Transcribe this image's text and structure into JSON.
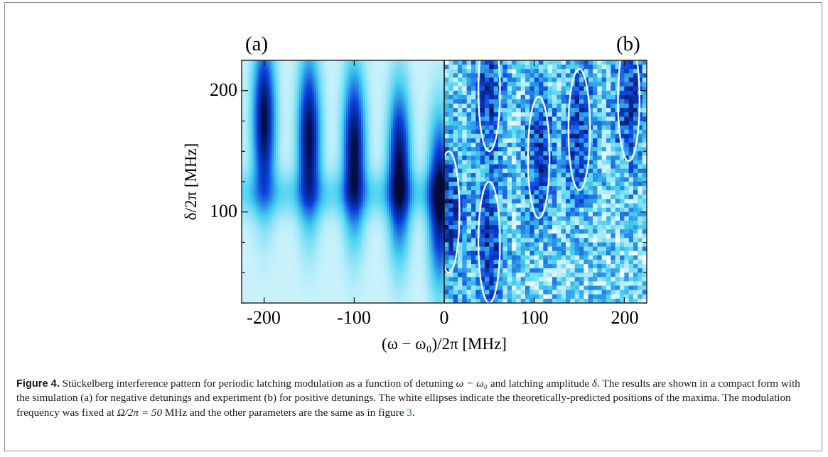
{
  "figure": {
    "panel_a_label": "(a)",
    "panel_b_label": "(b)",
    "xlabel": "(ω − ω₀)/2π  [MHz]",
    "ylabel": "δ/2π  [MHz]",
    "x_ticks": [
      "-200",
      "-100",
      "0",
      "100",
      "200"
    ],
    "y_ticks": [
      "200",
      "100"
    ]
  },
  "caption": {
    "label": "Figure 4.",
    "text_1": " Stückelberg interference pattern for periodic latching modulation as a function of detuning ",
    "detuning_expr": "ω − ω₀",
    "text_2": " and latching amplitude ",
    "amp_symbol": "δ",
    "text_3": ". The results are shown in a compact form with the simulation (a) for negative detunings and experiment (b) for positive detunings. The white ellipses indicate the theoretically-predicted positions of the maxima. The modulation frequency was fixed at ",
    "freq_expr": "Ω/2π = 50",
    "text_4": " MHz and the other parameters are the same as in figure ",
    "fig_ref": "3",
    "text_5": "."
  },
  "chart_data": {
    "type": "heatmap",
    "xlabel": "(ω − ω₀)/2π [MHz]",
    "ylabel": "δ/2π [MHz]",
    "xlim": [
      -225,
      225
    ],
    "ylim": [
      25,
      225
    ],
    "x_ticks": [
      -200,
      -100,
      0,
      100,
      200
    ],
    "y_ticks": [
      100,
      200
    ],
    "colormap": [
      "#f5fdff",
      "#45d0f0",
      "#0a3fdc",
      "#020a3c"
    ],
    "modulation_frequency_MHz": 50,
    "panel_a": {
      "label": "(a)",
      "x_range": [
        -225,
        0
      ],
      "dark_fringe_centers_x": [
        -200,
        -150,
        -100,
        -50,
        -5
      ],
      "dark_fringe_centers_y": [
        175,
        160,
        150,
        135,
        110
      ]
    },
    "panel_b": {
      "label": "(b)",
      "x_range": [
        0,
        225
      ],
      "ellipse_centers": [
        {
          "x": 5,
          "y": 100
        },
        {
          "x": 50,
          "y": 75
        },
        {
          "x": 50,
          "y": 200
        },
        {
          "x": 105,
          "y": 145
        },
        {
          "x": 150,
          "y": 168
        },
        {
          "x": 205,
          "y": 192
        }
      ]
    }
  }
}
